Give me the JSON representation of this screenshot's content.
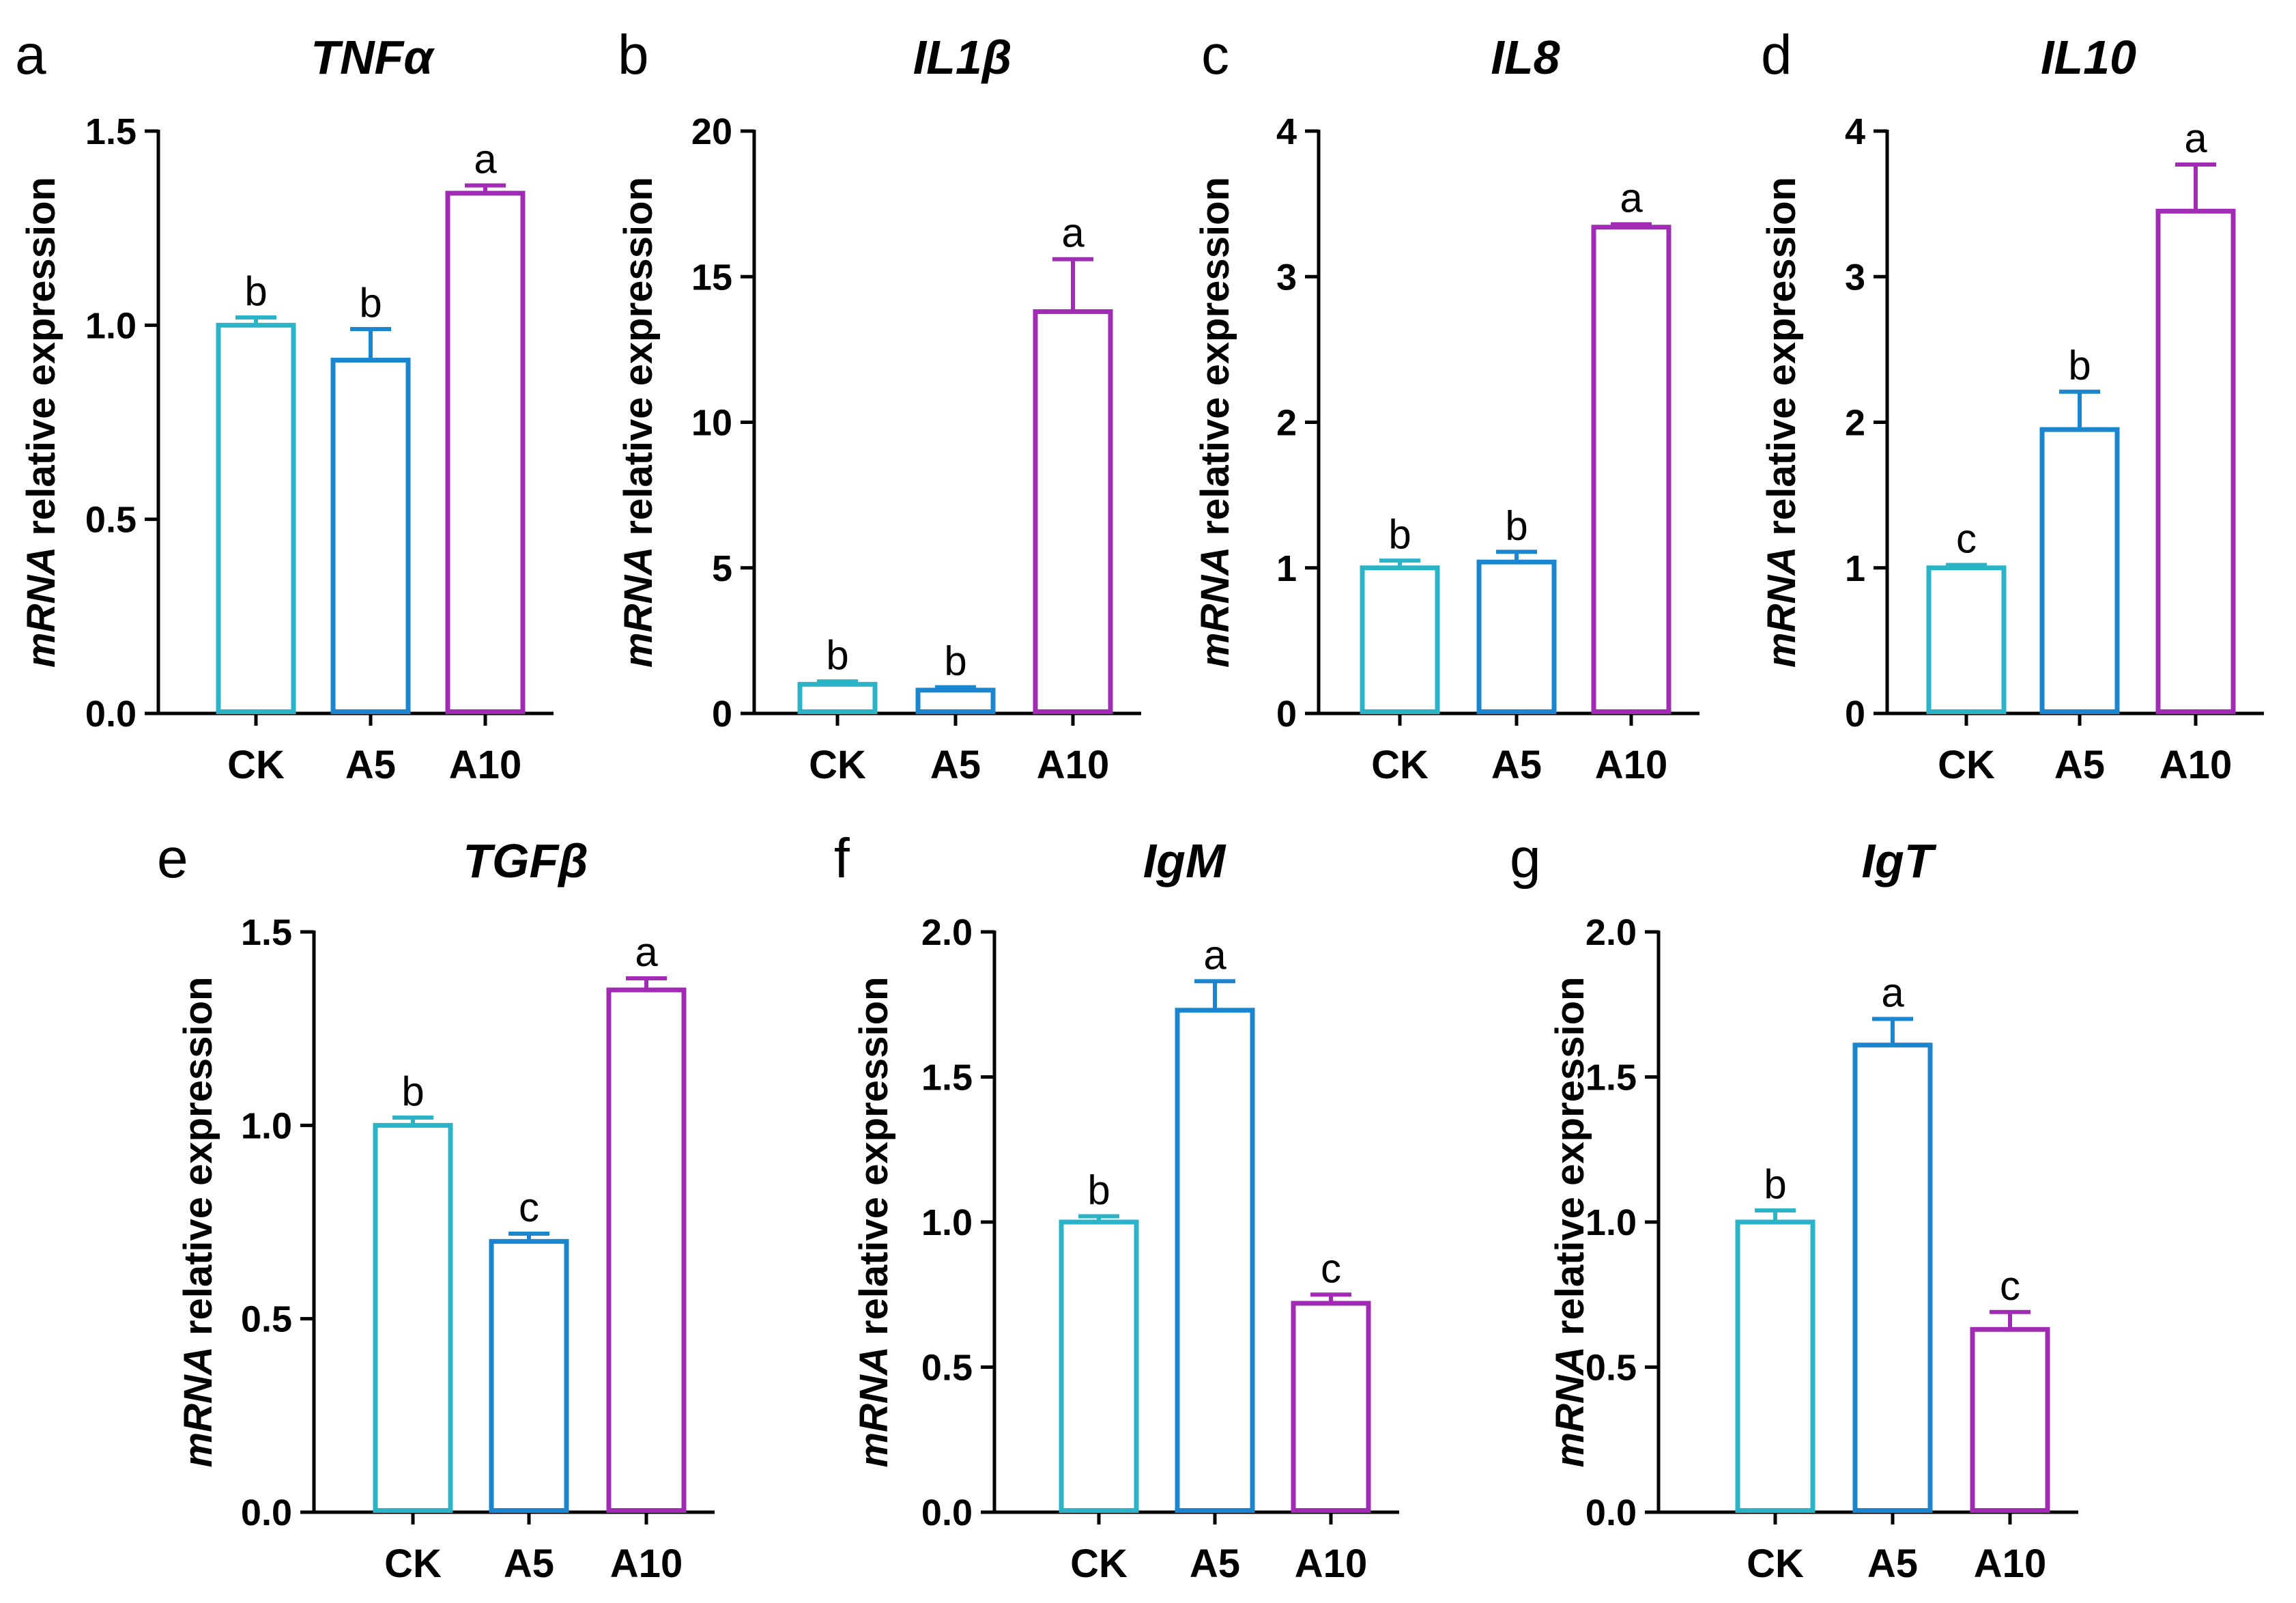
{
  "chart_data": [
    {
      "panel": "a",
      "type": "bar",
      "title": "TNFα",
      "ylabel_italic": "mRNA",
      "ylabel_rest": " relative expression",
      "categories": [
        "CK",
        "A5",
        "A10"
      ],
      "values": [
        1.0,
        0.91,
        1.34
      ],
      "errors": [
        0.02,
        0.08,
        0.02
      ],
      "letters": [
        "b",
        "b",
        "a"
      ],
      "colors": [
        "#2BB3C8",
        "#1B86CF",
        "#A12BB5"
      ],
      "ylim": [
        0,
        1.5
      ],
      "yticks": [
        0.0,
        0.5,
        1.0,
        1.5
      ],
      "ytick_labels": [
        "0.0",
        "0.5",
        "1.0",
        "1.5"
      ]
    },
    {
      "panel": "b",
      "type": "bar",
      "title": "IL1β",
      "ylabel_italic": "mRNA",
      "ylabel_rest": " relative expression",
      "categories": [
        "CK",
        "A5",
        "A10"
      ],
      "values": [
        1.0,
        0.8,
        13.8
      ],
      "errors": [
        0.1,
        0.1,
        1.8
      ],
      "letters": [
        "b",
        "b",
        "a"
      ],
      "colors": [
        "#2BB3C8",
        "#1B86CF",
        "#A12BB5"
      ],
      "ylim": [
        0,
        20
      ],
      "yticks": [
        0,
        5,
        10,
        15,
        20
      ],
      "ytick_labels": [
        "0",
        "5",
        "10",
        "15",
        "20"
      ]
    },
    {
      "panel": "c",
      "type": "bar",
      "title": "IL8",
      "ylabel_italic": "mRNA",
      "ylabel_rest": " relative expression",
      "categories": [
        "CK",
        "A5",
        "A10"
      ],
      "values": [
        1.0,
        1.04,
        3.34
      ],
      "errors": [
        0.05,
        0.07,
        0.02
      ],
      "letters": [
        "b",
        "b",
        "a"
      ],
      "colors": [
        "#2BB3C8",
        "#1B86CF",
        "#A12BB5"
      ],
      "ylim": [
        0,
        4
      ],
      "yticks": [
        0,
        1,
        2,
        3,
        4
      ],
      "ytick_labels": [
        "0",
        "1",
        "2",
        "3",
        "4"
      ]
    },
    {
      "panel": "d",
      "type": "bar",
      "title": "IL10",
      "ylabel_italic": "mRNA",
      "ylabel_rest": " relative expression",
      "categories": [
        "CK",
        "A5",
        "A10"
      ],
      "values": [
        1.0,
        1.95,
        3.45
      ],
      "errors": [
        0.02,
        0.26,
        0.32
      ],
      "letters": [
        "c",
        "b",
        "a"
      ],
      "colors": [
        "#2BB3C8",
        "#1B86CF",
        "#A12BB5"
      ],
      "ylim": [
        0,
        4
      ],
      "yticks": [
        0,
        1,
        2,
        3,
        4
      ],
      "ytick_labels": [
        "0",
        "1",
        "2",
        "3",
        "4"
      ]
    },
    {
      "panel": "e",
      "type": "bar",
      "title": "TGFβ",
      "ylabel_italic": "mRNA",
      "ylabel_rest": " relative expression",
      "categories": [
        "CK",
        "A5",
        "A10"
      ],
      "values": [
        1.0,
        0.7,
        1.35
      ],
      "errors": [
        0.02,
        0.02,
        0.03
      ],
      "letters": [
        "b",
        "c",
        "a"
      ],
      "colors": [
        "#2BB3C8",
        "#1B86CF",
        "#A12BB5"
      ],
      "ylim": [
        0,
        1.5
      ],
      "yticks": [
        0.0,
        0.5,
        1.0,
        1.5
      ],
      "ytick_labels": [
        "0.0",
        "0.5",
        "1.0",
        "1.5"
      ]
    },
    {
      "panel": "f",
      "type": "bar",
      "title": "IgM",
      "ylabel_italic": "mRNA",
      "ylabel_rest": " relative expression",
      "categories": [
        "CK",
        "A5",
        "A10"
      ],
      "values": [
        1.0,
        1.73,
        0.72
      ],
      "errors": [
        0.02,
        0.1,
        0.03
      ],
      "letters": [
        "b",
        "a",
        "c"
      ],
      "colors": [
        "#2BB3C8",
        "#1B86CF",
        "#A12BB5"
      ],
      "ylim": [
        0,
        2.0
      ],
      "yticks": [
        0.0,
        0.5,
        1.0,
        1.5,
        2.0
      ],
      "ytick_labels": [
        "0.0",
        "0.5",
        "1.0",
        "1.5",
        "2.0"
      ]
    },
    {
      "panel": "g",
      "type": "bar",
      "title": "IgT",
      "ylabel_italic": "mRNA",
      "ylabel_rest": " relative expression",
      "categories": [
        "CK",
        "A5",
        "A10"
      ],
      "values": [
        1.0,
        1.61,
        0.63
      ],
      "errors": [
        0.04,
        0.09,
        0.06
      ],
      "letters": [
        "b",
        "a",
        "c"
      ],
      "colors": [
        "#2BB3C8",
        "#1B86CF",
        "#A12BB5"
      ],
      "ylim": [
        0,
        2.0
      ],
      "yticks": [
        0.0,
        0.5,
        1.0,
        1.5,
        2.0
      ],
      "ytick_labels": [
        "0.0",
        "0.5",
        "1.0",
        "1.5",
        "2.0"
      ]
    }
  ]
}
